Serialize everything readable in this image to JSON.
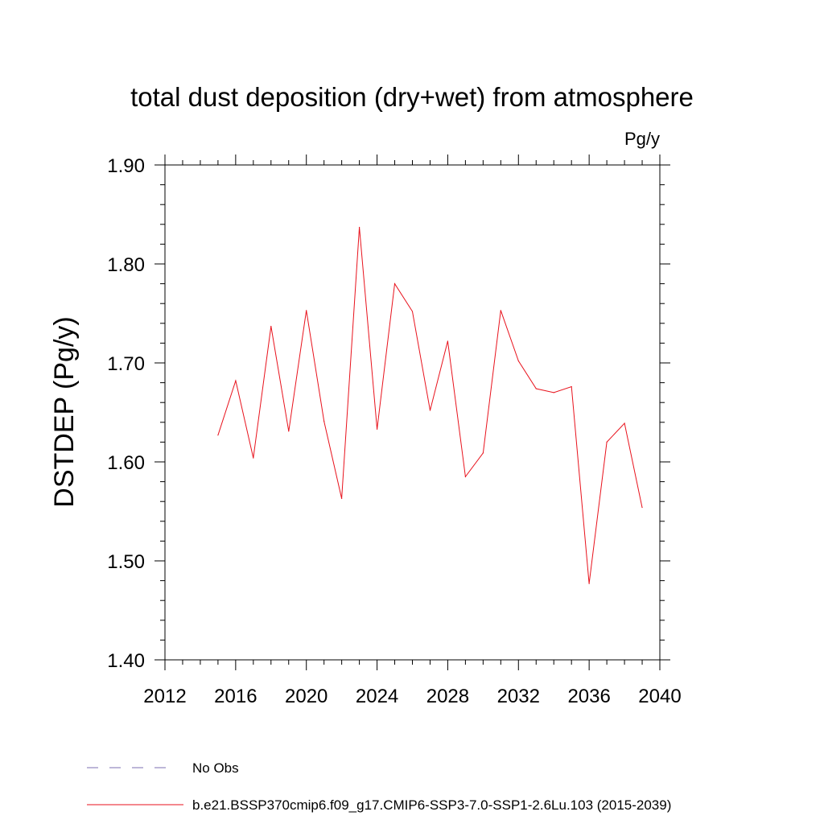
{
  "chart_data": {
    "type": "line",
    "title": "total dust deposition (dry+wet) from atmosphere",
    "units_label": "Pg/y",
    "xlabel": "",
    "ylabel": "DSTDEP  (Pg/y)",
    "xlim": [
      2012,
      2040
    ],
    "ylim": [
      1.4,
      1.9
    ],
    "xticks": [
      2012,
      2016,
      2020,
      2024,
      2028,
      2032,
      2036,
      2040
    ],
    "xtick_labels": [
      "2012",
      "2016",
      "2020",
      "2024",
      "2028",
      "2032",
      "2036",
      "2040"
    ],
    "yticks": [
      1.4,
      1.5,
      1.6,
      1.7,
      1.8,
      1.9
    ],
    "ytick_labels": [
      "1.40",
      "1.50",
      "1.60",
      "1.70",
      "1.80",
      "1.90"
    ],
    "grid": false,
    "legend_position": "bottom",
    "series": [
      {
        "name": "b.e21.BSSP370cmip6.f09_g17.CMIP6-SSP3-7.0-SSP1-2.6Lu.103 (2015-2039)",
        "color": "#e8121c",
        "style": "solid",
        "x": [
          2015,
          2016,
          2017,
          2018,
          2019,
          2020,
          2021,
          2022,
          2023,
          2024,
          2025,
          2026,
          2027,
          2028,
          2029,
          2030,
          2031,
          2032,
          2033,
          2034,
          2035,
          2036,
          2037,
          2038,
          2039
        ],
        "values": [
          1.627,
          1.682,
          1.604,
          1.737,
          1.631,
          1.753,
          1.641,
          1.563,
          1.837,
          1.633,
          1.78,
          1.752,
          1.652,
          1.722,
          1.585,
          1.609,
          1.753,
          1.702,
          1.674,
          1.67,
          1.676,
          1.477,
          1.62,
          1.639,
          1.554
        ]
      },
      {
        "name": "No Obs",
        "color": "#7b6fb0",
        "style": "dashed",
        "x": [],
        "values": []
      }
    ]
  }
}
